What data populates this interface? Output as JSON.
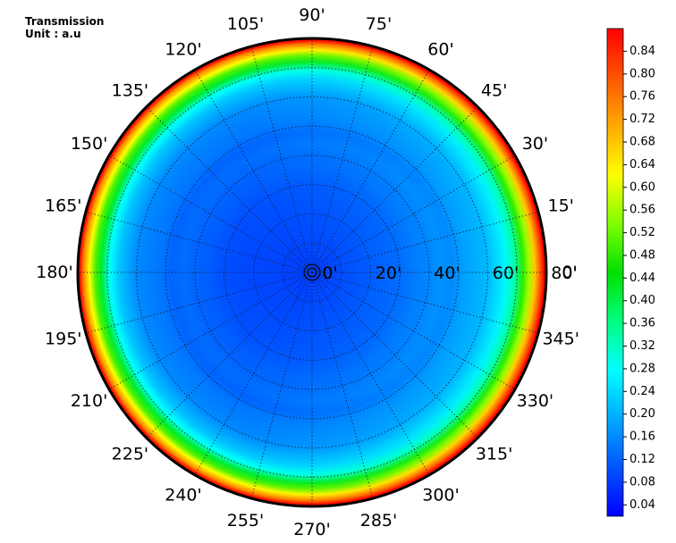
{
  "chart_data": {
    "type": "heatmap",
    "projection": "polar",
    "title_lines": [
      "Transmission",
      "Unit : a.u"
    ],
    "angular_axis": {
      "unit_suffix": "'",
      "ticks": [
        0,
        15,
        30,
        45,
        60,
        75,
        90,
        105,
        120,
        135,
        150,
        165,
        180,
        195,
        210,
        225,
        240,
        255,
        270,
        285,
        300,
        315,
        330,
        345
      ],
      "labels": [
        "0'",
        "15'",
        "30'",
        "45'",
        "60'",
        "75'",
        "90'",
        "105'",
        "120'",
        "135'",
        "150'",
        "165'",
        "180'",
        "195'",
        "210'",
        "225'",
        "240'",
        "255'",
        "270'",
        "285'",
        "300'",
        "315'",
        "330'",
        "345'"
      ]
    },
    "radial_axis": {
      "range": [
        0,
        80
      ],
      "ticks": [
        0,
        20,
        40,
        60,
        80
      ],
      "labels": [
        "0'",
        "20'",
        "40'",
        "60'",
        "80'"
      ],
      "grid_ring_step": 10
    },
    "grid": true,
    "colorbar": {
      "range": [
        0.02,
        0.88
      ],
      "ticks": [
        0.04,
        0.08,
        0.12,
        0.16,
        0.2,
        0.24,
        0.28,
        0.32,
        0.36,
        0.4,
        0.44,
        0.48,
        0.52,
        0.56,
        0.6,
        0.64,
        0.68,
        0.72,
        0.76,
        0.8,
        0.84
      ],
      "labels": [
        "0.04",
        "0.08",
        "0.12",
        "0.16",
        "0.20",
        "0.24",
        "0.28",
        "0.32",
        "0.36",
        "0.40",
        "0.44",
        "0.48",
        "0.52",
        "0.56",
        "0.60",
        "0.64",
        "0.68",
        "0.72",
        "0.76",
        "0.80",
        "0.84"
      ],
      "colors": [
        "#0000ff",
        "#0055ff",
        "#00aaff",
        "#00ffff",
        "#00ff80",
        "#00e000",
        "#80ff00",
        "#ffff00",
        "#ffaa00",
        "#ff5500",
        "#ff0000"
      ]
    },
    "radial_profile": {
      "radius": [
        0,
        10,
        20,
        30,
        36,
        40,
        44,
        48,
        52,
        56,
        60,
        63,
        66,
        69,
        72,
        74,
        76,
        78,
        79.2,
        80
      ],
      "value": [
        0.07,
        0.08,
        0.09,
        0.1,
        0.115,
        0.12,
        0.13,
        0.12,
        0.14,
        0.15,
        0.16,
        0.19,
        0.22,
        0.28,
        0.42,
        0.5,
        0.62,
        0.74,
        0.86,
        0.88
      ]
    },
    "right_side_boost": 0.06
  }
}
